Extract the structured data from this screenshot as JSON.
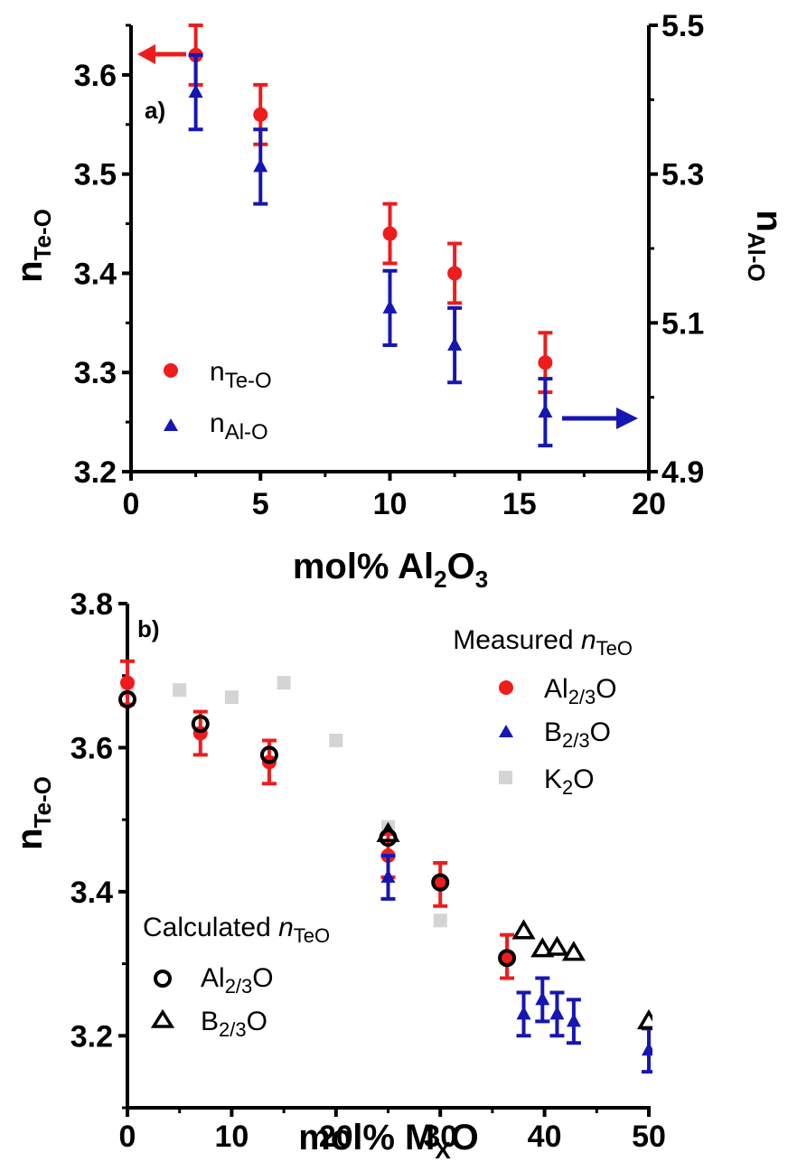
{
  "chart_data": [
    {
      "type": "scatter",
      "panel_label": "a)",
      "xlabel": {
        "main": "mol% Al",
        "sub1": "2",
        "mid": "O",
        "sub2": "3"
      },
      "ylabel_left": {
        "main": "n",
        "sub": "Te-O"
      },
      "ylabel_right": {
        "main": "n",
        "sub": "Al-O"
      },
      "xlim": [
        0,
        20
      ],
      "ylim_left": [
        3.2,
        3.65
      ],
      "ylim_right": [
        4.9,
        5.5
      ],
      "x_ticks": [
        "0",
        "5",
        "10",
        "15",
        "20"
      ],
      "y_left_ticks": [
        "3.2",
        "3.3",
        "3.4",
        "3.5",
        "3.6"
      ],
      "y_right_ticks": [
        "4.9",
        "5.1",
        "5.3",
        "5.5"
      ],
      "legend_position": "bottom-left",
      "series": [
        {
          "name_main": "n",
          "name_sub": "Te-O",
          "axis": "left",
          "marker": "circle",
          "color": "#ee1c1c",
          "points": [
            {
              "x": 2.5,
              "y": 3.62,
              "err": 0.03
            },
            {
              "x": 5,
              "y": 3.56,
              "err": 0.03
            },
            {
              "x": 10,
              "y": 3.44,
              "err": 0.03
            },
            {
              "x": 12.5,
              "y": 3.4,
              "err": 0.03
            },
            {
              "x": 16,
              "y": 3.31,
              "err": 0.03
            }
          ]
        },
        {
          "name_main": "n",
          "name_sub": "Al-O",
          "axis": "right",
          "marker": "triangle",
          "color": "#1616b4",
          "points": [
            {
              "x": 2.5,
              "y": 5.41,
              "err": 0.05
            },
            {
              "x": 5,
              "y": 5.31,
              "err": 0.05
            },
            {
              "x": 10,
              "y": 5.12,
              "err": 0.05
            },
            {
              "x": 12.5,
              "y": 5.07,
              "err": 0.05
            },
            {
              "x": 16,
              "y": 4.98,
              "err": 0.045
            }
          ]
        }
      ],
      "arrows": [
        {
          "series": "Te-O",
          "direction": "left",
          "color": "#ee1c1c"
        },
        {
          "series": "Al-O",
          "direction": "right",
          "color": "#1616b4"
        }
      ]
    },
    {
      "type": "scatter",
      "panel_label": "b)",
      "xlabel": {
        "main": "mol% M",
        "sub": "X",
        "end": "O"
      },
      "ylabel": {
        "main": "n",
        "sub": "Te-O"
      },
      "xlim": [
        0,
        50
      ],
      "ylim": [
        3.1,
        3.8
      ],
      "x_ticks": [
        "0",
        "10",
        "20",
        "30",
        "40",
        "50"
      ],
      "y_ticks": [
        "3.2",
        "3.4",
        "3.6",
        "3.8"
      ],
      "legend_measured": {
        "title_pre": "Measured ",
        "title_it": "n",
        "title_sub": "TeO",
        "position": "top-right"
      },
      "legend_calculated": {
        "title_pre": "Calculated ",
        "title_it": "n",
        "title_sub": "TeO",
        "position": "bottom-left"
      },
      "series": [
        {
          "group": "measured",
          "name_main": "Al",
          "name_sub": "2/3",
          "name_end": "O",
          "marker": "circle",
          "color": "#ee1c1c",
          "points": [
            {
              "x": 0,
              "y": 3.69,
              "err": 0.03
            },
            {
              "x": 7,
              "y": 3.62,
              "err": 0.03
            },
            {
              "x": 13.6,
              "y": 3.58,
              "err": 0.03
            },
            {
              "x": 25,
              "y": 3.45,
              "err": 0.03
            },
            {
              "x": 30,
              "y": 3.41,
              "err": 0.03
            },
            {
              "x": 36.4,
              "y": 3.31,
              "err": 0.03
            }
          ]
        },
        {
          "group": "measured",
          "name_main": "B",
          "name_sub": "2/3",
          "name_end": "O",
          "marker": "triangle",
          "color": "#1616b4",
          "points": [
            {
              "x": 25,
              "y": 3.42,
              "err": 0.03
            },
            {
              "x": 38,
              "y": 3.23,
              "err": 0.03
            },
            {
              "x": 39.8,
              "y": 3.25,
              "err": 0.03
            },
            {
              "x": 41.2,
              "y": 3.23,
              "err": 0.03
            },
            {
              "x": 42.8,
              "y": 3.22,
              "err": 0.03
            },
            {
              "x": 50,
              "y": 3.18,
              "err": 0.03
            }
          ]
        },
        {
          "group": "measured",
          "name_main": "K",
          "name_sub": "2",
          "name_end": "O",
          "marker": "square",
          "color": "#d4d4d4",
          "points": [
            {
              "x": 0,
              "y": 3.68
            },
            {
              "x": 5,
              "y": 3.68
            },
            {
              "x": 10,
              "y": 3.67
            },
            {
              "x": 15,
              "y": 3.69
            },
            {
              "x": 20,
              "y": 3.61
            },
            {
              "x": 25,
              "y": 3.49
            },
            {
              "x": 30,
              "y": 3.36
            }
          ]
        },
        {
          "group": "calculated",
          "name_main": "Al",
          "name_sub": "2/3",
          "name_end": "O",
          "marker": "open-circle",
          "color": "#000000",
          "points": [
            {
              "x": 0,
              "y": 3.667
            },
            {
              "x": 7,
              "y": 3.633
            },
            {
              "x": 13.6,
              "y": 3.59
            },
            {
              "x": 25,
              "y": 3.475
            },
            {
              "x": 30,
              "y": 3.413
            },
            {
              "x": 36.4,
              "y": 3.308
            }
          ]
        },
        {
          "group": "calculated",
          "name_main": "B",
          "name_sub": "2/3",
          "name_end": "O",
          "marker": "open-triangle",
          "color": "#000000",
          "points": [
            {
              "x": 25,
              "y": 3.48
            },
            {
              "x": 38,
              "y": 3.345
            },
            {
              "x": 39.8,
              "y": 3.32
            },
            {
              "x": 41.2,
              "y": 3.322
            },
            {
              "x": 42.8,
              "y": 3.315
            },
            {
              "x": 50,
              "y": 3.22
            }
          ]
        }
      ]
    }
  ]
}
